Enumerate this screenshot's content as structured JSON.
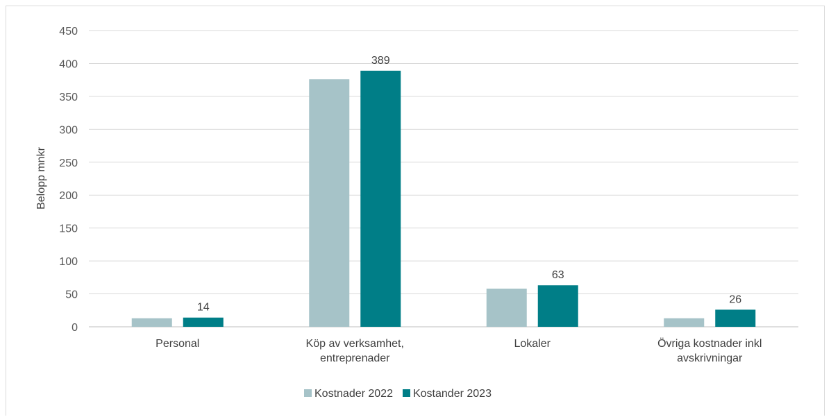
{
  "chart_data": {
    "type": "bar",
    "title": "",
    "xlabel": "",
    "ylabel": "Belopp mnkr",
    "ylim": [
      0,
      450
    ],
    "yticks": [
      0,
      50,
      100,
      150,
      200,
      250,
      300,
      350,
      400,
      450
    ],
    "grid": true,
    "legend_position": "bottom",
    "categories": [
      [
        "Personal"
      ],
      [
        "Köp av verksamhet,",
        "entreprenader"
      ],
      [
        "Lokaler"
      ],
      [
        "Övriga kostnader inkl",
        "avskrivningar"
      ]
    ],
    "series": [
      {
        "name": "Kostnader 2022",
        "color": "#a6c3c8",
        "values": [
          13,
          376,
          58,
          13
        ],
        "labels": [
          null,
          null,
          null,
          null
        ]
      },
      {
        "name": "Kostander 2023",
        "color": "#007e87",
        "values": [
          14,
          389,
          63,
          26
        ],
        "labels": [
          "14",
          "389",
          "63",
          "26"
        ]
      }
    ]
  }
}
